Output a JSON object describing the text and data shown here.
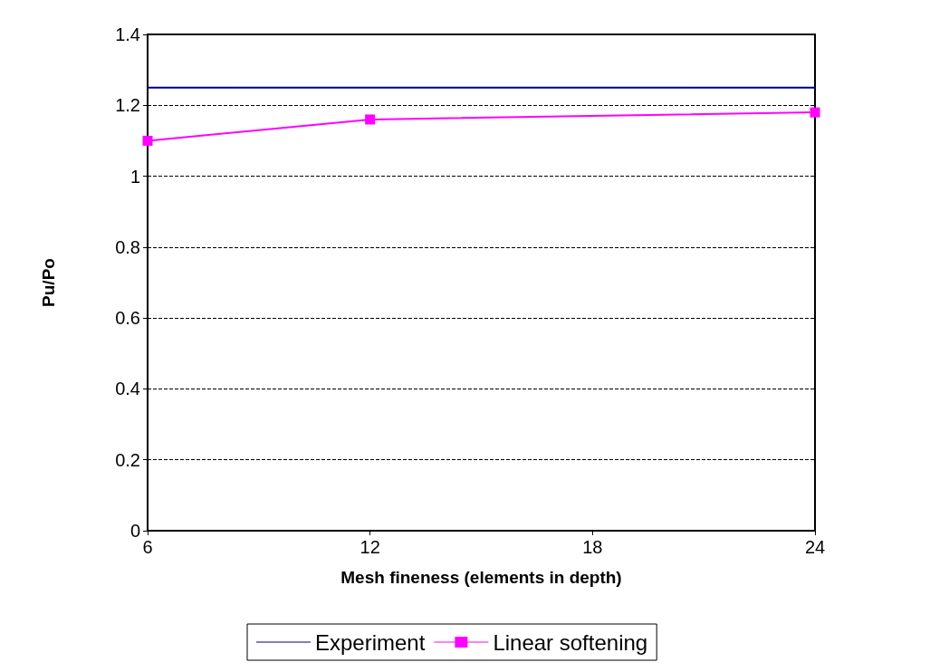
{
  "chart_data": {
    "type": "line",
    "xlabel": "Mesh fineness (elements in depth)",
    "ylabel": "Pu/Po",
    "xlim": [
      6,
      24
    ],
    "xticks": [
      6,
      12,
      18,
      24
    ],
    "ylim": [
      0,
      1.4
    ],
    "yticks": [
      0,
      0.2,
      0.4,
      0.6,
      0.8,
      1,
      1.2,
      1.4
    ],
    "grid": "y",
    "legend": "bottom",
    "series": [
      {
        "name": "Experiment",
        "color": "#000080",
        "x": [
          6,
          24
        ],
        "values": [
          1.25,
          1.25
        ],
        "marker": "none"
      },
      {
        "name": "Linear softening",
        "color": "#ff00ff",
        "x": [
          6,
          12,
          24
        ],
        "values": [
          1.1,
          1.16,
          1.18
        ],
        "marker": "square"
      }
    ]
  }
}
